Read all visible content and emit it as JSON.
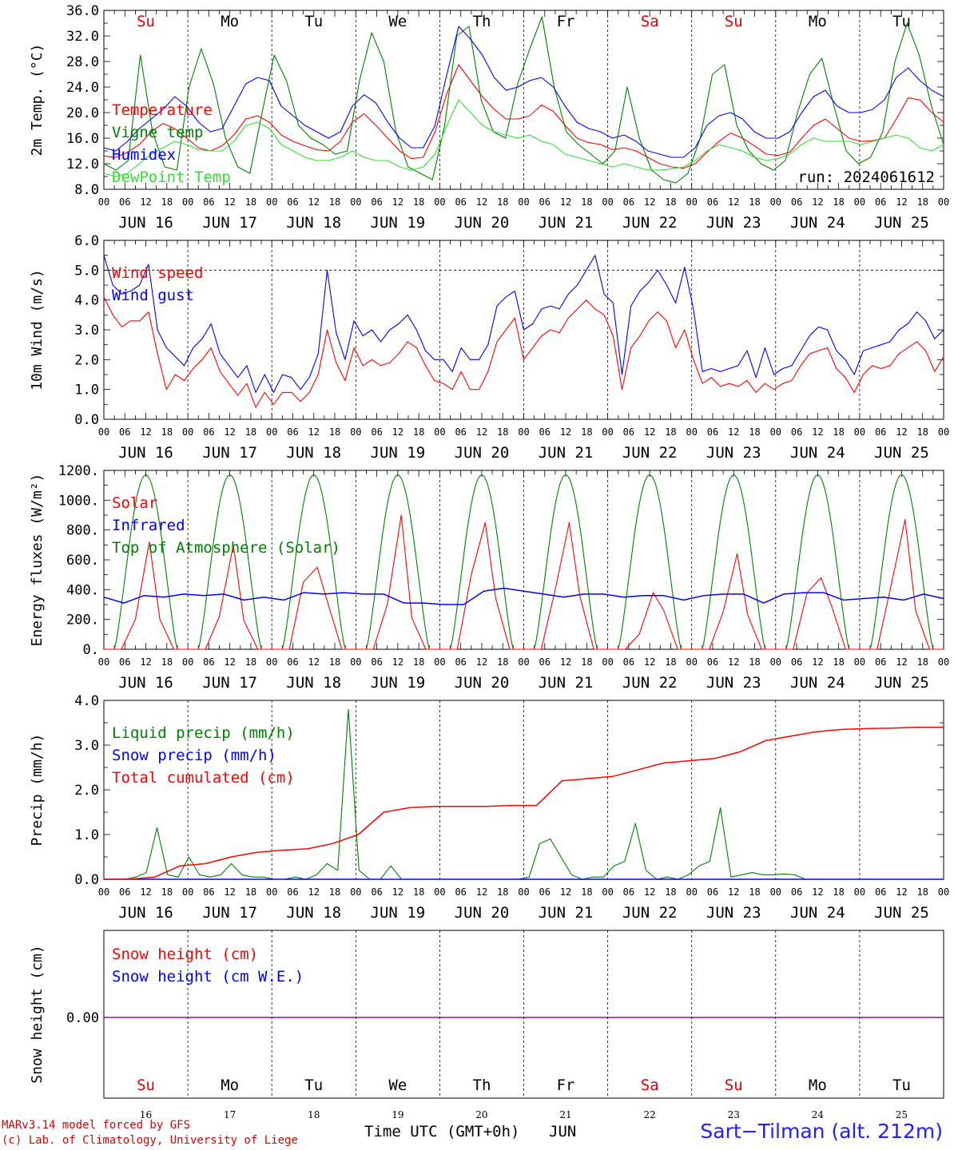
{
  "days": [
    "16",
    "17",
    "18",
    "19",
    "20",
    "21",
    "22",
    "23",
    "24",
    "25"
  ],
  "month": "JUN",
  "weekdays": [
    "Su",
    "Mo",
    "Tu",
    "We",
    "Th",
    "Fr",
    "Sa",
    "Su",
    "Mo",
    "Tu"
  ],
  "weekend_color": "#e00000",
  "hour_ticks": [
    "00",
    "06",
    "12",
    "18"
  ],
  "final_hour": "00",
  "footer": {
    "model": "MARv3.14 model forced by GFS",
    "credit": "(c) Lab. of Climatology, University of Liege",
    "site": "Sart−Tilman (alt. 212m)",
    "xlabel_time": "Time UTC (GMT+0h)",
    "xlabel_month": "JUN"
  },
  "chart_data": [
    {
      "type": "line",
      "ylabel": "2m Temp. (°C)",
      "ylim": [
        8,
        36
      ],
      "yticks": [
        "8.0",
        "12.0",
        "16.0",
        "20.0",
        "24.0",
        "28.0",
        "32.0",
        "36.0"
      ],
      "annotation": "run: 2024061612",
      "series": [
        {
          "name": "Temperature",
          "color": "#ff0000",
          "values": [
            13.2,
            13.0,
            13.8,
            15.0,
            17.0,
            18.3,
            17.5,
            16.0,
            14.5,
            14.0,
            14.8,
            16.5,
            19.0,
            19.5,
            18.5,
            16.5,
            15.5,
            14.8,
            14.2,
            14.0,
            15.5,
            18.5,
            19.8,
            18.0,
            16.0,
            14.0,
            12.8,
            13.0,
            17.0,
            23.0,
            27.5,
            25.0,
            22.5,
            20.5,
            19.0,
            19.0,
            19.5,
            21.2,
            20.2,
            18.0,
            16.0,
            15.3,
            15.0,
            14.2,
            14.5,
            14.0,
            13.0,
            12.0,
            11.5,
            11.3,
            12.0,
            13.8,
            15.5,
            16.8,
            16.0,
            14.8,
            13.5,
            13.3,
            13.8,
            16.0,
            18.0,
            19.0,
            17.5,
            16.0,
            15.5,
            15.6,
            16.0,
            19.0,
            22.3,
            22.0,
            20.0,
            18.5
          ]
        },
        {
          "name": "Vigne temp",
          "color": "#008000",
          "values": [
            12.0,
            11.0,
            12.5,
            29.0,
            17.0,
            11.5,
            11.0,
            24.0,
            30.0,
            24.5,
            16.0,
            11.5,
            10.5,
            20.0,
            29.0,
            25.0,
            18.0,
            16.0,
            15.0,
            13.5,
            14.0,
            25.0,
            32.5,
            28.0,
            17.0,
            11.5,
            10.5,
            9.5,
            18.0,
            32.0,
            33.5,
            22.0,
            17.0,
            16.0,
            24.5,
            30.0,
            35.0,
            24.0,
            17.0,
            15.0,
            13.5,
            12.0,
            14.0,
            24.0,
            16.0,
            11.0,
            9.5,
            9.0,
            10.5,
            16.0,
            26.0,
            27.5,
            18.0,
            14.0,
            12.0,
            11.0,
            12.5,
            20.0,
            26.0,
            28.5,
            21.0,
            14.0,
            12.0,
            13.0,
            17.0,
            28.0,
            34.0,
            29.0,
            21.0,
            15.0
          ]
        },
        {
          "name": "Humidex",
          "color": "#0000ff",
          "values": [
            14.5,
            14.0,
            15.5,
            17.5,
            19.0,
            20.5,
            22.5,
            21.0,
            18.5,
            17.0,
            17.5,
            21.0,
            24.5,
            25.5,
            25.0,
            21.0,
            19.5,
            18.0,
            17.0,
            16.0,
            17.0,
            21.0,
            22.8,
            21.5,
            18.5,
            16.0,
            14.5,
            14.5,
            18.0,
            26.0,
            33.5,
            31.5,
            29.0,
            25.5,
            23.5,
            24.0,
            25.0,
            25.5,
            24.0,
            21.0,
            18.5,
            17.5,
            17.0,
            16.0,
            16.5,
            15.5,
            14.0,
            13.5,
            13.0,
            13.0,
            14.5,
            18.0,
            19.5,
            20.0,
            19.0,
            17.0,
            16.0,
            16.0,
            17.0,
            20.0,
            22.5,
            23.5,
            21.0,
            20.0,
            20.0,
            20.5,
            22.0,
            25.5,
            27.0,
            25.0,
            23.5,
            22.5
          ]
        },
        {
          "name": "DewPoint Temp",
          "color": "#30e030",
          "values": [
            10.5,
            10.0,
            10.5,
            12.0,
            13.5,
            14.5,
            15.5,
            15.0,
            14.2,
            14.0,
            14.0,
            15.5,
            18.0,
            18.5,
            17.5,
            15.0,
            14.0,
            13.0,
            12.5,
            12.5,
            13.0,
            14.0,
            13.0,
            12.5,
            12.5,
            11.5,
            11.0,
            11.5,
            13.5,
            18.0,
            22.0,
            20.0,
            18.0,
            17.0,
            16.5,
            16.0,
            16.5,
            15.5,
            15.0,
            13.5,
            13.0,
            12.5,
            12.0,
            11.5,
            12.0,
            11.5,
            11.0,
            11.0,
            11.2,
            11.5,
            12.5,
            14.0,
            15.0,
            14.5,
            14.0,
            13.0,
            12.5,
            12.8,
            13.5,
            15.0,
            16.0,
            15.5,
            15.5,
            15.5,
            15.0,
            15.5,
            16.0,
            16.5,
            16.0,
            14.5,
            14.0,
            15.0
          ]
        }
      ]
    },
    {
      "type": "line",
      "ylabel": "10m Wind (m/s)",
      "ylim": [
        0,
        6
      ],
      "yticks": [
        "0.0",
        "1.0",
        "2.0",
        "3.0",
        "4.0",
        "5.0",
        "6.0"
      ],
      "reference_line": 5.0,
      "series": [
        {
          "name": "Wind speed",
          "color": "#ff0000",
          "values": [
            4.1,
            3.5,
            3.1,
            3.3,
            3.3,
            3.6,
            2.2,
            1.0,
            1.5,
            1.3,
            1.7,
            2.0,
            2.4,
            1.6,
            1.2,
            0.8,
            1.2,
            0.4,
            0.9,
            0.5,
            0.9,
            0.9,
            0.6,
            0.9,
            1.5,
            3.0,
            1.9,
            1.3,
            2.4,
            1.8,
            2.0,
            1.8,
            1.9,
            2.2,
            2.6,
            2.4,
            1.8,
            1.3,
            1.2,
            1.0,
            1.6,
            1.0,
            1.0,
            1.6,
            2.6,
            3.0,
            3.4,
            2.0,
            2.4,
            2.8,
            3.0,
            2.9,
            3.4,
            3.7,
            4.0,
            3.7,
            3.5,
            2.8,
            1.0,
            2.4,
            2.8,
            3.3,
            3.6,
            3.3,
            2.4,
            3.0,
            2.0,
            1.2,
            1.4,
            1.1,
            1.2,
            1.1,
            1.3,
            0.9,
            1.2,
            1.0,
            1.2,
            1.3,
            1.8,
            2.2,
            2.3,
            2.4,
            1.7,
            1.4,
            0.9,
            1.5,
            1.8,
            1.7,
            1.8,
            2.2,
            2.4,
            2.6,
            2.3,
            1.6,
            2.1
          ]
        },
        {
          "name": "Wind gust",
          "color": "#0000ff",
          "values": [
            5.5,
            4.5,
            4.2,
            4.3,
            4.5,
            5.2,
            3.0,
            2.4,
            2.1,
            1.8,
            2.4,
            2.7,
            3.2,
            2.2,
            1.8,
            1.4,
            1.8,
            0.9,
            1.5,
            0.9,
            1.5,
            1.4,
            1.0,
            1.4,
            2.2,
            5.0,
            2.9,
            2.0,
            3.3,
            2.8,
            3.0,
            2.6,
            3.0,
            3.2,
            3.5,
            3.0,
            2.3,
            2.0,
            2.0,
            1.6,
            2.4,
            2.0,
            2.0,
            2.5,
            3.8,
            4.1,
            4.3,
            3.0,
            3.2,
            3.7,
            3.8,
            3.7,
            4.2,
            4.5,
            5.0,
            5.5,
            4.2,
            3.9,
            1.5,
            3.8,
            4.3,
            4.6,
            5.0,
            4.5,
            3.9,
            5.1,
            3.7,
            1.6,
            1.7,
            1.6,
            1.7,
            1.8,
            2.3,
            1.4,
            2.4,
            1.5,
            1.7,
            1.8,
            2.3,
            2.8,
            3.1,
            3.0,
            2.3,
            2.0,
            1.5,
            2.3,
            2.4,
            2.5,
            2.6,
            3.0,
            3.2,
            3.6,
            3.3,
            2.7,
            3.0
          ]
        }
      ]
    },
    {
      "type": "line",
      "ylabel": "Energy fluxes (W/m²)",
      "ylim": [
        0,
        1200
      ],
      "yticks": [
        "0.",
        "200.",
        "400.",
        "600.",
        "800.",
        "1000.",
        "1200."
      ],
      "series": [
        {
          "name": "Solar",
          "color": "#ff0000",
          "days_values": [
            [
              0,
              200,
              720,
              80
            ],
            [
              0,
              220,
              700,
              60
            ],
            [
              0,
              450,
              550,
              40
            ],
            [
              0,
              300,
              900,
              30
            ],
            [
              0,
              500,
              850,
              40
            ],
            [
              0,
              400,
              850,
              120
            ],
            [
              0,
              100,
              380,
              200
            ],
            [
              0,
              250,
              640,
              80
            ],
            [
              0,
              380,
              480,
              60
            ],
            [
              0,
              430,
              870,
              0
            ]
          ]
        },
        {
          "name": "Infrared",
          "color": "#0000ff",
          "values": [
            350,
            310,
            360,
            350,
            370,
            360,
            370,
            330,
            350,
            330,
            380,
            370,
            380,
            370,
            370,
            310,
            310,
            300,
            300,
            390,
            410,
            390,
            370,
            350,
            370,
            370,
            350,
            360,
            360,
            330,
            360,
            370,
            370,
            310,
            370,
            380,
            380,
            330,
            340,
            350,
            330,
            370,
            340
          ]
        },
        {
          "name": "Top of Atmosphere (Solar)",
          "color": "#008000",
          "peak": 1170
        }
      ]
    },
    {
      "type": "line",
      "ylabel": "Precip (mm/h)",
      "ylim": [
        0,
        4
      ],
      "yticks": [
        "0.0",
        "1.0",
        "2.0",
        "3.0",
        "4.0"
      ],
      "series": [
        {
          "name": "Liquid precip (mm/h)",
          "color": "#008000",
          "values": [
            0,
            0,
            0,
            0.05,
            0.15,
            1.15,
            0.1,
            0.05,
            0.5,
            0.1,
            0.05,
            0.1,
            0.35,
            0.1,
            0.05,
            0.05,
            0,
            0,
            0.05,
            0,
            0.1,
            0.35,
            0.2,
            3.8,
            0.2,
            0,
            0,
            0.3,
            0,
            0,
            0,
            0,
            0,
            0,
            0,
            0,
            0,
            0,
            0,
            0,
            0.05,
            0.8,
            0.9,
            0.5,
            0.1,
            0,
            0.05,
            0.05,
            0.3,
            0.4,
            1.25,
            0.2,
            0,
            0.05,
            0,
            0.1,
            0.3,
            0.4,
            1.6,
            0.05,
            0.1,
            0.15,
            0.1,
            0.1,
            0.12,
            0.1,
            0,
            0,
            0,
            0,
            0,
            0,
            0,
            0,
            0,
            0,
            0,
            0,
            0,
            0
          ]
        },
        {
          "name": "Snow precip (mm/h)",
          "color": "#0000ff",
          "values": [
            0,
            0
          ]
        },
        {
          "name": "Total cumulated (cm)",
          "color": "#ff0000",
          "values": [
            0,
            0,
            0.05,
            0.3,
            0.35,
            0.5,
            0.6,
            0.65,
            0.68,
            0.8,
            1.0,
            1.5,
            1.6,
            1.63,
            1.63,
            1.63,
            1.65,
            1.65,
            2.2,
            2.25,
            2.3,
            2.45,
            2.6,
            2.65,
            2.7,
            2.85,
            3.1,
            3.2,
            3.3,
            3.35,
            3.37,
            3.38,
            3.4,
            3.4
          ]
        }
      ]
    },
    {
      "type": "line",
      "ylabel": "Snow height (cm)",
      "yticks": [
        "0.00"
      ],
      "series": [
        {
          "name": "Snow height (cm)",
          "color": "#ff0000",
          "values": [
            0,
            0
          ]
        },
        {
          "name": "Snow height (cm W.E.)",
          "color": "#0000ff",
          "values": [
            0,
            0
          ]
        }
      ]
    }
  ]
}
